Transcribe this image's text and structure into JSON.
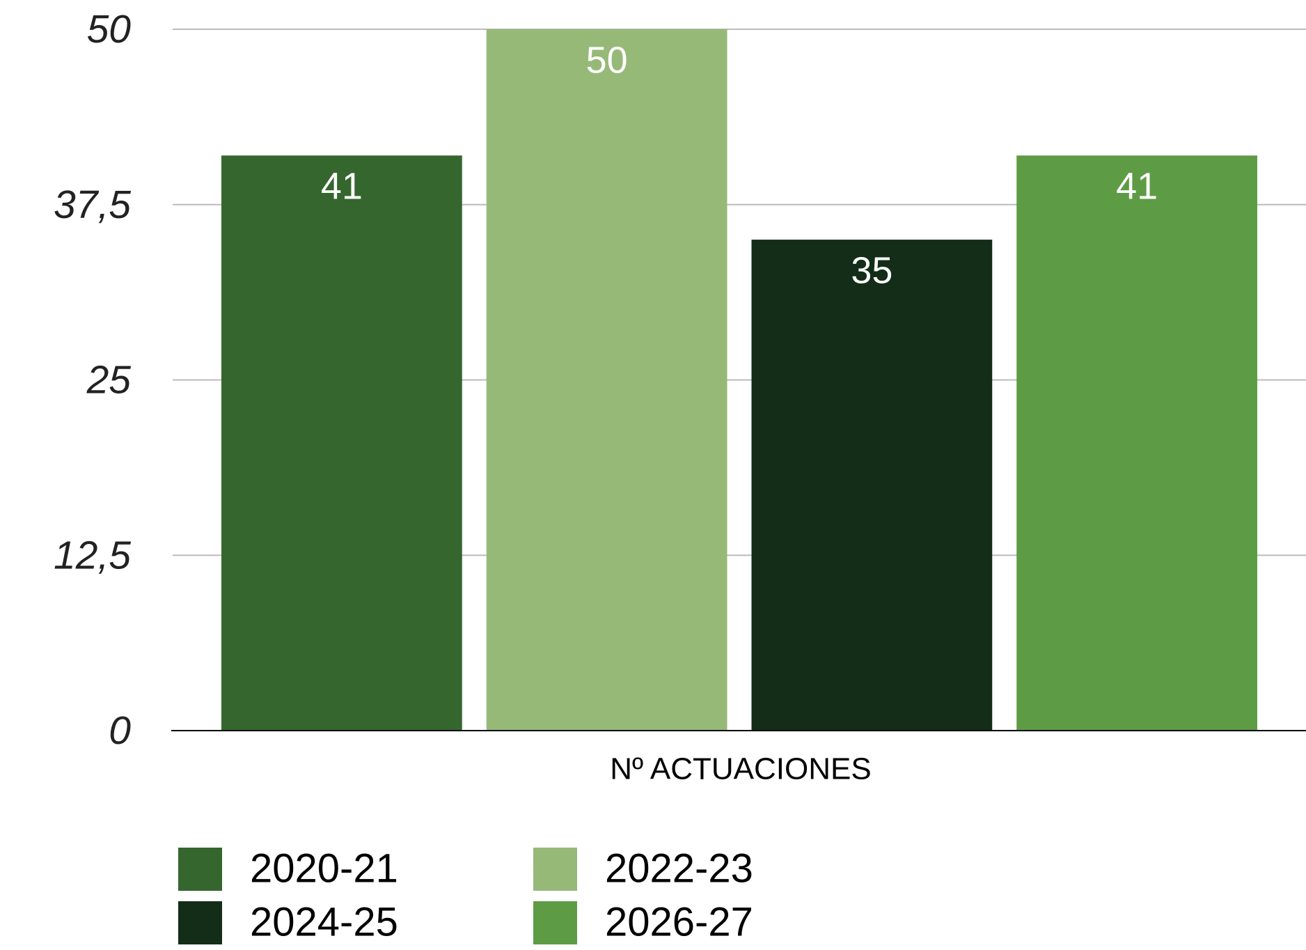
{
  "chart_data": {
    "type": "bar",
    "categories": [
      "Nº ACTUACIONES"
    ],
    "series": [
      {
        "name": "2020-21",
        "color": "#35662e",
        "values": [
          41
        ]
      },
      {
        "name": "2022-23",
        "color": "#96b978",
        "values": [
          50
        ]
      },
      {
        "name": "2024-25",
        "color": "#132d18",
        "values": [
          35
        ]
      },
      {
        "name": "2026-27",
        "color": "#5e9b45",
        "values": [
          41
        ]
      }
    ],
    "ylim": [
      0,
      50
    ],
    "yticks": [
      0,
      {
        "value": 12.5,
        "label": "12,5"
      },
      25,
      {
        "value": 37.5,
        "label": "37,5"
      },
      50
    ],
    "grid": true,
    "legend": "bottom"
  }
}
